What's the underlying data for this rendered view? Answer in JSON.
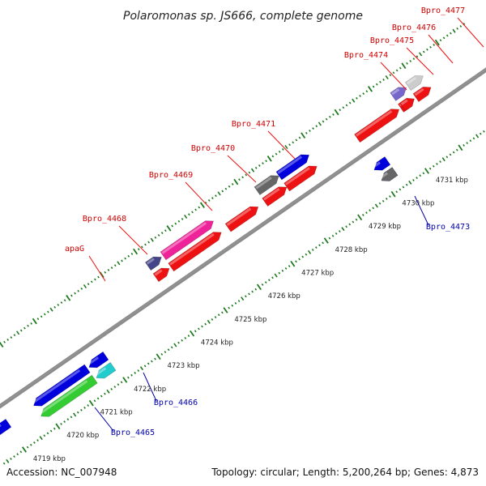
{
  "title": "Polaromonas sp. JS666, complete genome",
  "footer": {
    "accession": "Accession: NC_007948",
    "summary": "Topology: circular; Length: 5,200,264 bp; Genes: 4,873"
  },
  "colors": {
    "backbone": "#8c8c8c",
    "ruler": "#1f7a1f",
    "label_fwd": "#cc0000",
    "label_rev": "#0000aa",
    "cds": "#ee1111",
    "leader": "#ee1111",
    "leader_rev": "#0000aa"
  },
  "ruler_labels": [
    {
      "text": "4719 kbp",
      "kb": 4719
    },
    {
      "text": "4720 kbp",
      "kb": 4720
    },
    {
      "text": "4721 kbp",
      "kb": 4721
    },
    {
      "text": "4722 kbp",
      "kb": 4722
    },
    {
      "text": "4723 kbp",
      "kb": 4723
    },
    {
      "text": "4724 kbp",
      "kb": 4724
    },
    {
      "text": "4725 kbp",
      "kb": 4725
    },
    {
      "text": "4726 kbp",
      "kb": 4726
    },
    {
      "text": "4727 kbp",
      "kb": 4727
    },
    {
      "text": "4728 kbp",
      "kb": 4728
    },
    {
      "text": "4729 kbp",
      "kb": 4729
    },
    {
      "text": "4730 kbp",
      "kb": 4730
    },
    {
      "text": "4731 kbp",
      "kb": 4731
    }
  ],
  "features": [
    {
      "name": "Bpro_4477",
      "strand": "+",
      "kb_start": 4731.8,
      "kb_end": 4732.25,
      "color": "#cccccc",
      "cds_row": true
    },
    {
      "name": "Bpro_4476",
      "strand": "+",
      "kb_start": 4731.35,
      "kb_end": 4731.75,
      "color": "#7766cc",
      "cds_row": true
    },
    {
      "name": "Bpro_4475",
      "strand": "+",
      "kb_start": 4731.4,
      "kb_end": 4731.75,
      "color": "#ee1111",
      "cds_row": true,
      "cds_only": true
    },
    {
      "name": "Bpro_4474",
      "strand": "+",
      "kb_start": 4730.05,
      "kb_end": 4731.3,
      "color": "#ee1111",
      "cds_only": true
    },
    {
      "name": "Bpro_4471",
      "strand": "+",
      "kb_start": 4727.95,
      "kb_end": 4728.85,
      "color": "#0000dd"
    },
    {
      "name": "Bpro_4470",
      "strand": "+",
      "kb_start": 4727.3,
      "kb_end": 4727.95,
      "color": "#666666"
    },
    {
      "name": "Bpro_4469",
      "strand": "+",
      "kb_start": 4726.2,
      "kb_end": 4727.1,
      "color": "#ee1111",
      "cds_only": true
    },
    {
      "name": "Bpro_4468",
      "strand": "+",
      "kb_start": 4724.5,
      "kb_end": 4726.0,
      "color": "#ee2299"
    },
    {
      "name": "apaG",
      "strand": "+",
      "kb_start": 4724.05,
      "kb_end": 4724.45,
      "color": "#444488"
    },
    {
      "name": "Bpro_4473",
      "strand": "-",
      "kb_start": 4729.95,
      "kb_end": 4730.35,
      "color": "#0000dd"
    },
    {
      "name": "Bpro_4466",
      "strand": "-",
      "kb_start": 4721.45,
      "kb_end": 4721.95,
      "color": "#22cccc"
    },
    {
      "name": "Bpro_4465",
      "strand": "-",
      "kb_start": 4719.8,
      "kb_end": 4721.4,
      "color": "#33cc33"
    }
  ],
  "gene_labels": [
    {
      "text": "Bpro_4477",
      "strand": "+"
    },
    {
      "text": "Bpro_4476",
      "strand": "+"
    },
    {
      "text": "Bpro_4475",
      "strand": "+"
    },
    {
      "text": "Bpro_4474",
      "strand": "+"
    },
    {
      "text": "Bpro_4471",
      "strand": "+"
    },
    {
      "text": "Bpro_4470",
      "strand": "+"
    },
    {
      "text": "Bpro_4469",
      "strand": "+"
    },
    {
      "text": "Bpro_4468",
      "strand": "+"
    },
    {
      "text": "apaG",
      "strand": "+"
    },
    {
      "text": "Bpro_4473",
      "strand": "-"
    },
    {
      "text": "Bpro_4466",
      "strand": "-"
    },
    {
      "text": "Bpro_4465",
      "strand": "-"
    }
  ]
}
